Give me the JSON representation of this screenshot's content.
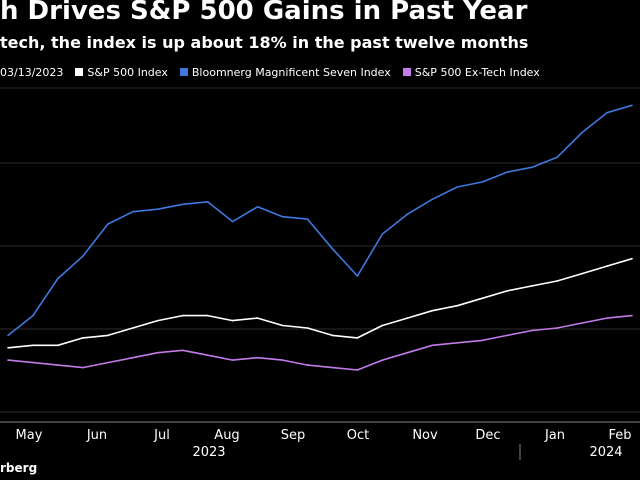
{
  "chart_data": {
    "type": "line",
    "title": "h Drives S&P 500 Gains in Past Year",
    "subtitle": "tech, the index is up about 18% in the past twelve months",
    "legend_note": "03/13/2023",
    "legend": [
      {
        "name": "S&P 500 Index",
        "color": "#ffffff"
      },
      {
        "name": "Bloomnerg Magnificent Seven Index",
        "color": "#3f78df"
      },
      {
        "name": "S&P 500 Ex-Tech Index",
        "color": "#c27be8"
      }
    ],
    "x_month_labels": [
      "May",
      "Jun",
      "Jul",
      "Aug",
      "Sep",
      "Oct",
      "Nov",
      "Dec",
      "Jan",
      "Feb"
    ],
    "x_year_labels": [
      "2023",
      "2024"
    ],
    "x_range_weeks": [
      0,
      50
    ],
    "y_range": [
      75,
      210
    ],
    "grid": true,
    "series": [
      {
        "name": "S&P 500 Index",
        "x_week": [
          0,
          2,
          4,
          6,
          8,
          10,
          12,
          14,
          16,
          18,
          20,
          22,
          24,
          26,
          28,
          30,
          32,
          34,
          36,
          38,
          40,
          42,
          44,
          46,
          48,
          50
        ],
        "values": [
          105,
          106,
          106,
          109,
          110,
          113,
          116,
          118,
          118,
          116,
          117,
          114,
          113,
          110,
          109,
          114,
          117,
          120,
          122,
          125,
          128,
          130,
          132,
          135,
          138,
          141
        ]
      },
      {
        "name": "Bloomnerg Magnificent Seven Index",
        "x_week": [
          0,
          2,
          4,
          6,
          8,
          10,
          12,
          14,
          16,
          18,
          20,
          22,
          24,
          26,
          28,
          30,
          32,
          34,
          36,
          38,
          40,
          42,
          44,
          46,
          48,
          50
        ],
        "values": [
          110,
          118,
          133,
          142,
          155,
          160,
          161,
          163,
          164,
          156,
          162,
          158,
          157,
          145,
          134,
          151,
          159,
          165,
          170,
          172,
          176,
          178,
          182,
          192,
          200,
          203
        ]
      },
      {
        "name": "S&P 500 Ex-Tech Index",
        "x_week": [
          0,
          2,
          4,
          6,
          8,
          10,
          12,
          14,
          16,
          18,
          20,
          22,
          24,
          26,
          28,
          30,
          32,
          34,
          36,
          38,
          40,
          42,
          44,
          46,
          48,
          50
        ],
        "values": [
          100,
          99,
          98,
          97,
          99,
          101,
          103,
          104,
          102,
          100,
          101,
          100,
          98,
          97,
          96,
          100,
          103,
          106,
          107,
          108,
          110,
          112,
          113,
          115,
          117,
          118
        ]
      }
    ]
  },
  "footer": {
    "source": "rberg"
  }
}
